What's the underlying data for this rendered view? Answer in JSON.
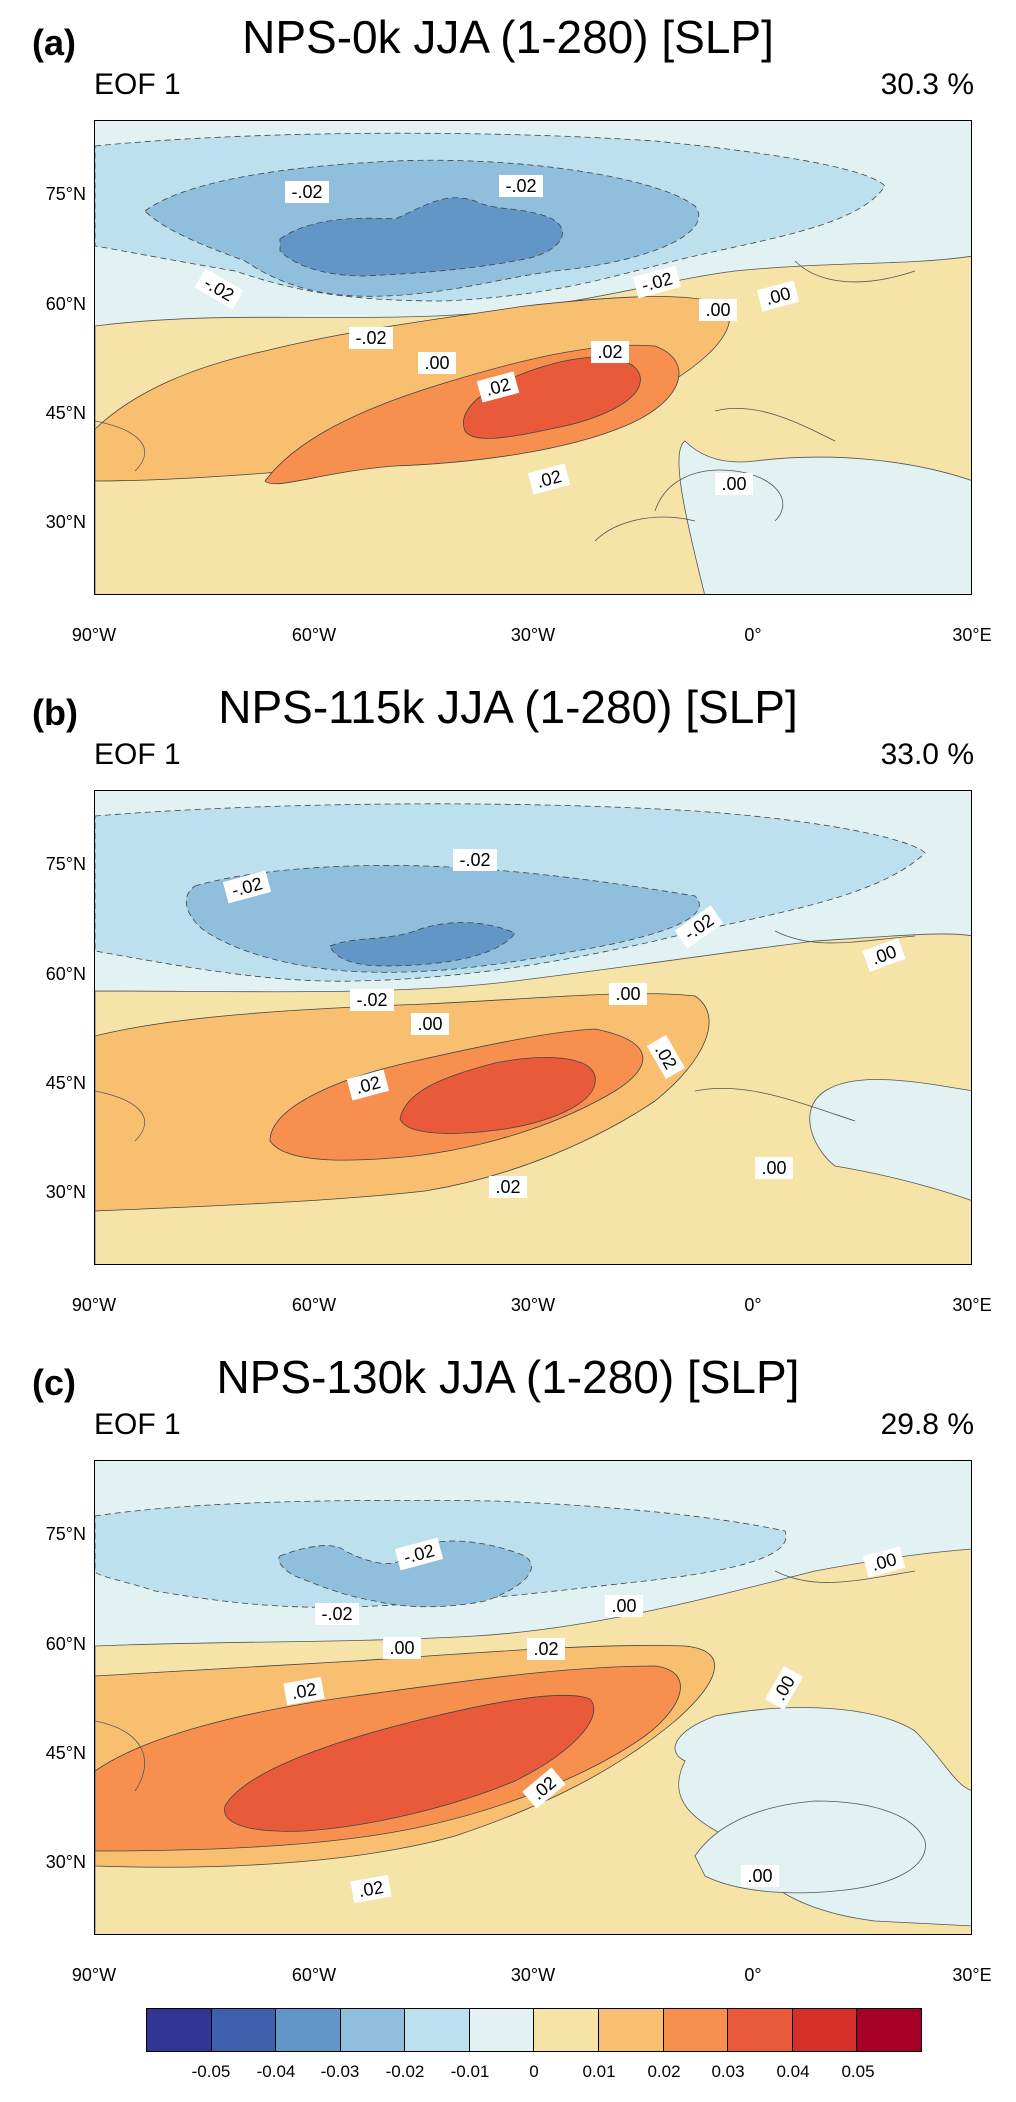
{
  "colors": {
    "n05": "#313695",
    "n04": "#3f60ad",
    "n03": "#6296c6",
    "n02": "#8fbfdc",
    "n01": "#bde0ee",
    "n00": "#e2f1f2",
    "p00": "#f5e3a8",
    "p01": "#f9bf70",
    "p02": "#f7904f",
    "p03": "#e95a3b",
    "p04": "#d62f27",
    "p05": "#a60026"
  },
  "axes": {
    "lat_labels": [
      "75°N",
      "60°N",
      "45°N",
      "30°N"
    ],
    "lon_labels": [
      "90°W",
      "60°W",
      "30°W",
      "0°",
      "30°E"
    ]
  },
  "panels": [
    {
      "letter": "(a)",
      "title": "NPS-0k JJA (1-280) [SLP]",
      "eof": "EOF 1",
      "pct": "30.3 %",
      "contour_labels": [
        "-.02",
        "-.02",
        "-.02",
        "-.02",
        "-.02",
        ".00",
        ".00",
        ".00",
        ".02",
        ".02",
        ".02",
        ".00"
      ]
    },
    {
      "letter": "(b)",
      "title": "NPS-115k JJA (1-280) [SLP]",
      "eof": "EOF 1",
      "pct": "33.0 %",
      "contour_labels": [
        "-.02",
        "-.02",
        "-.02",
        "-.02",
        ".00",
        ".00",
        ".00",
        ".02",
        ".02",
        ".02",
        ".00"
      ]
    },
    {
      "letter": "(c)",
      "title": "NPS-130k JJA (1-280) [SLP]",
      "eof": "EOF 1",
      "pct": "29.8 %",
      "contour_labels": [
        "-.02",
        "-.02",
        ".00",
        ".00",
        ".00",
        ".02",
        ".02",
        ".02",
        ".02",
        ".00",
        ".00"
      ]
    }
  ],
  "colorbar": {
    "labels": [
      "-0.05",
      "-0.04",
      "-0.03",
      "-0.02",
      "-0.01",
      "0",
      "0.01",
      "0.02",
      "0.03",
      "0.04",
      "0.05"
    ]
  }
}
